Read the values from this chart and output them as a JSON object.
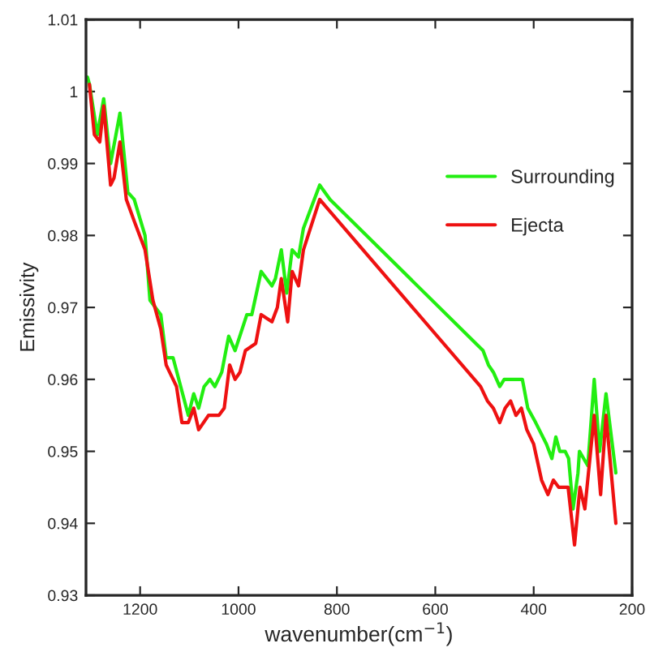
{
  "chart_data": {
    "type": "line",
    "xlabel": "wavenumber(cm$^{−1}$)",
    "ylabel": "Emissivity",
    "xlim": [
      1310,
      200
    ],
    "xticks": [
      1200,
      1000,
      800,
      600,
      400,
      200
    ],
    "ylim": [
      0.93,
      1.01
    ],
    "yticks": [
      0.93,
      0.94,
      0.95,
      0.96,
      0.97,
      0.98,
      0.99,
      1,
      1.01
    ],
    "legend": "top right",
    "grid": false,
    "series": [
      {
        "name": "Surrounding",
        "color": "#22ee11",
        "x": [
          1307,
          1303,
          1287,
          1274,
          1260,
          1241,
          1225,
          1212,
          1190,
          1180,
          1158,
          1147,
          1133,
          1102,
          1091,
          1081,
          1070,
          1058,
          1048,
          1034,
          1020,
          1007,
          983,
          973,
          954,
          932,
          925,
          913,
          902,
          891,
          878,
          868,
          835,
          814,
          503,
          492,
          482,
          469,
          460,
          433,
          423,
          412,
          396,
          374,
          363,
          355,
          347,
          336,
          329,
          320,
          310,
          307,
          290,
          277,
          266,
          253,
          233
        ],
        "values": [
          1.002,
          1.001,
          0.994,
          0.999,
          0.99,
          0.997,
          0.986,
          0.985,
          0.98,
          0.971,
          0.969,
          0.963,
          0.963,
          0.955,
          0.958,
          0.956,
          0.959,
          0.96,
          0.959,
          0.961,
          0.966,
          0.964,
          0.969,
          0.969,
          0.975,
          0.973,
          0.974,
          0.978,
          0.972,
          0.978,
          0.977,
          0.981,
          0.987,
          0.985,
          0.964,
          0.962,
          0.961,
          0.959,
          0.96,
          0.96,
          0.96,
          0.956,
          0.954,
          0.951,
          0.949,
          0.952,
          0.95,
          0.95,
          0.949,
          0.942,
          0.947,
          0.95,
          0.948,
          0.96,
          0.95,
          0.958,
          0.947
        ]
      },
      {
        "name": "Ejecta",
        "color": "#ee1111",
        "x": [
          1303,
          1293,
          1282,
          1274,
          1260,
          1253,
          1241,
          1228,
          1212,
          1190,
          1174,
          1158,
          1147,
          1126,
          1115,
          1102,
          1091,
          1081,
          1061,
          1040,
          1029,
          1018,
          1007,
          997,
          986,
          965,
          954,
          932,
          921,
          913,
          900,
          891,
          878,
          868,
          835,
          508,
          494,
          482,
          469,
          458,
          447,
          436,
          425,
          414,
          400,
          384,
          371,
          360,
          349,
          330,
          317,
          306,
          296,
          277,
          264,
          253,
          233
        ],
        "values": [
          1.001,
          0.994,
          0.993,
          0.998,
          0.987,
          0.988,
          0.993,
          0.985,
          0.982,
          0.978,
          0.971,
          0.967,
          0.962,
          0.959,
          0.954,
          0.954,
          0.956,
          0.953,
          0.955,
          0.955,
          0.956,
          0.962,
          0.96,
          0.961,
          0.964,
          0.965,
          0.969,
          0.968,
          0.97,
          0.974,
          0.968,
          0.975,
          0.973,
          0.978,
          0.985,
          0.959,
          0.957,
          0.956,
          0.954,
          0.956,
          0.957,
          0.955,
          0.956,
          0.953,
          0.951,
          0.946,
          0.944,
          0.946,
          0.945,
          0.945,
          0.937,
          0.945,
          0.942,
          0.955,
          0.944,
          0.955,
          0.94
        ]
      }
    ]
  }
}
